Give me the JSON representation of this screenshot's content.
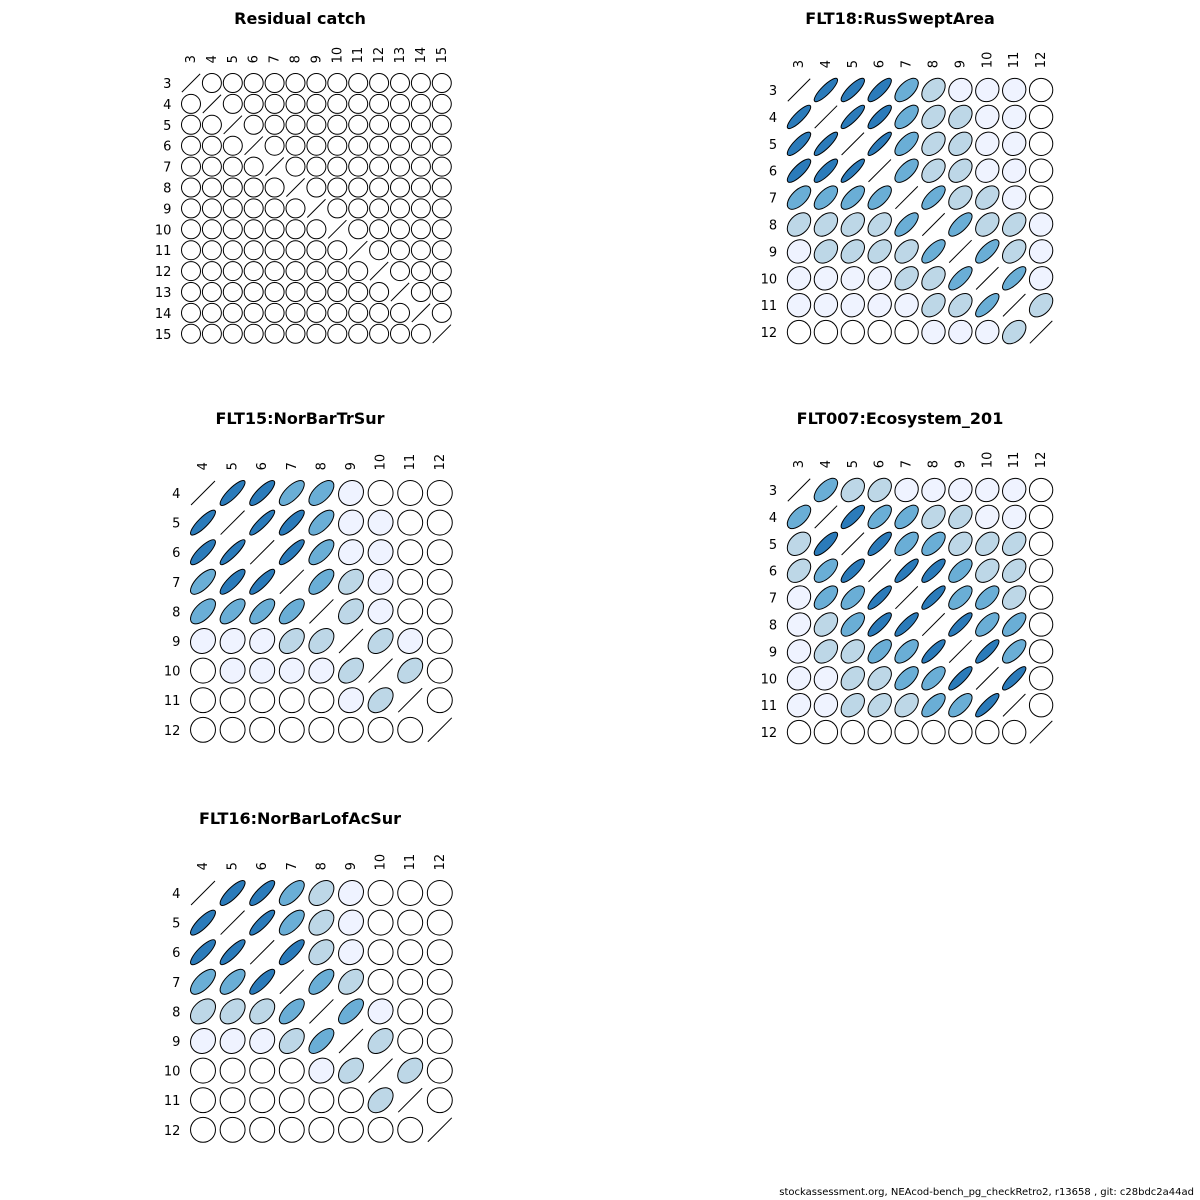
{
  "chart_data": [
    {
      "type": "heatmap",
      "title": "Residual catch",
      "labels": [
        "3",
        "4",
        "5",
        "6",
        "7",
        "8",
        "9",
        "10",
        "11",
        "12",
        "13",
        "14",
        "15"
      ],
      "matrix": [
        [
          1,
          0,
          0,
          0,
          0,
          0,
          0,
          0,
          0,
          0,
          0,
          0,
          0
        ],
        [
          0,
          1,
          0,
          0,
          0,
          0,
          0,
          0,
          0,
          0,
          0,
          0,
          0
        ],
        [
          0,
          0,
          1,
          0,
          0,
          0,
          0,
          0,
          0,
          0,
          0,
          0,
          0
        ],
        [
          0,
          0,
          0,
          1,
          0,
          0,
          0,
          0,
          0,
          0,
          0,
          0,
          0
        ],
        [
          0,
          0,
          0,
          0,
          1,
          0,
          0,
          0,
          0,
          0,
          0,
          0,
          0
        ],
        [
          0,
          0,
          0,
          0,
          0,
          1,
          0,
          0,
          0,
          0,
          0,
          0,
          0
        ],
        [
          0,
          0,
          0,
          0,
          0,
          0,
          1,
          0,
          0,
          0,
          0,
          0,
          0
        ],
        [
          0,
          0,
          0,
          0,
          0,
          0,
          0,
          1,
          0,
          0,
          0,
          0,
          0
        ],
        [
          0,
          0,
          0,
          0,
          0,
          0,
          0,
          0,
          1,
          0,
          0,
          0,
          0
        ],
        [
          0,
          0,
          0,
          0,
          0,
          0,
          0,
          0,
          0,
          1,
          0,
          0,
          0
        ],
        [
          0,
          0,
          0,
          0,
          0,
          0,
          0,
          0,
          0,
          0,
          1,
          0,
          0
        ],
        [
          0,
          0,
          0,
          0,
          0,
          0,
          0,
          0,
          0,
          0,
          0,
          1,
          0
        ],
        [
          0,
          0,
          0,
          0,
          0,
          0,
          0,
          0,
          0,
          0,
          0,
          0,
          1
        ]
      ]
    },
    {
      "type": "heatmap",
      "title": "FLT18:RusSweptArea",
      "labels": [
        "3",
        "4",
        "5",
        "6",
        "7",
        "8",
        "9",
        "10",
        "11",
        "12"
      ],
      "matrix": [
        [
          1.0,
          0.85,
          0.82,
          0.8,
          0.6,
          0.35,
          0.1,
          0.08,
          0.05,
          0.0
        ],
        [
          0.85,
          1.0,
          0.86,
          0.82,
          0.62,
          0.38,
          0.3,
          0.1,
          0.08,
          0.0
        ],
        [
          0.82,
          0.86,
          1.0,
          0.88,
          0.65,
          0.4,
          0.35,
          0.12,
          0.1,
          0.0
        ],
        [
          0.8,
          0.82,
          0.88,
          1.0,
          0.65,
          0.4,
          0.38,
          0.15,
          0.1,
          0.0
        ],
        [
          0.6,
          0.62,
          0.65,
          0.65,
          1.0,
          0.7,
          0.4,
          0.38,
          0.1,
          0.0
        ],
        [
          0.35,
          0.38,
          0.4,
          0.4,
          0.7,
          1.0,
          0.7,
          0.38,
          0.38,
          0.05
        ],
        [
          0.1,
          0.3,
          0.35,
          0.38,
          0.4,
          0.7,
          1.0,
          0.72,
          0.4,
          0.08
        ],
        [
          0.08,
          0.1,
          0.12,
          0.15,
          0.38,
          0.38,
          0.72,
          1.0,
          0.75,
          0.1
        ],
        [
          0.05,
          0.08,
          0.1,
          0.1,
          0.1,
          0.38,
          0.4,
          0.75,
          1.0,
          0.4
        ],
        [
          0.0,
          0.0,
          0.0,
          0.0,
          0.0,
          0.05,
          0.08,
          0.1,
          0.4,
          1.0
        ]
      ]
    },
    {
      "type": "heatmap",
      "title": "FLT15:NorBarTrSur",
      "labels": [
        "4",
        "5",
        "6",
        "7",
        "8",
        "9",
        "10",
        "11",
        "12"
      ],
      "matrix": [
        [
          1.0,
          0.85,
          0.82,
          0.7,
          0.6,
          0.1,
          0.0,
          0.0,
          0.0
        ],
        [
          0.85,
          1.0,
          0.88,
          0.82,
          0.65,
          0.12,
          0.05,
          0.0,
          0.0
        ],
        [
          0.82,
          0.88,
          1.0,
          0.85,
          0.65,
          0.15,
          0.05,
          0.0,
          0.0
        ],
        [
          0.7,
          0.82,
          0.85,
          1.0,
          0.65,
          0.38,
          0.08,
          0.0,
          0.0
        ],
        [
          0.6,
          0.65,
          0.65,
          0.65,
          1.0,
          0.38,
          0.1,
          0.0,
          0.0
        ],
        [
          0.1,
          0.12,
          0.15,
          0.38,
          0.38,
          1.0,
          0.4,
          0.1,
          0.0
        ],
        [
          0.0,
          0.05,
          0.05,
          0.08,
          0.1,
          0.4,
          1.0,
          0.4,
          0.0
        ],
        [
          0.0,
          0.0,
          0.0,
          0.0,
          0.0,
          0.12,
          0.4,
          1.0,
          0.0
        ],
        [
          0.0,
          0.0,
          0.0,
          0.0,
          0.0,
          0.0,
          0.0,
          0.0,
          1.0
        ]
      ]
    },
    {
      "type": "heatmap",
      "title": "FLT007:Ecosystem_201",
      "labels": [
        "3",
        "4",
        "5",
        "6",
        "7",
        "8",
        "9",
        "10",
        "11",
        "12"
      ],
      "matrix": [
        [
          1.0,
          0.6,
          0.35,
          0.35,
          0.1,
          0.1,
          0.1,
          0.1,
          0.1,
          0.0
        ],
        [
          0.6,
          1.0,
          0.8,
          0.62,
          0.6,
          0.38,
          0.35,
          0.12,
          0.1,
          0.0
        ],
        [
          0.35,
          0.8,
          1.0,
          0.82,
          0.62,
          0.6,
          0.35,
          0.35,
          0.38,
          0.0
        ],
        [
          0.35,
          0.62,
          0.82,
          1.0,
          0.85,
          0.82,
          0.62,
          0.38,
          0.38,
          0.0
        ],
        [
          0.1,
          0.6,
          0.62,
          0.85,
          1.0,
          0.85,
          0.62,
          0.62,
          0.38,
          0.0
        ],
        [
          0.1,
          0.38,
          0.6,
          0.82,
          0.85,
          1.0,
          0.85,
          0.65,
          0.65,
          0.0
        ],
        [
          0.1,
          0.35,
          0.35,
          0.62,
          0.62,
          0.85,
          1.0,
          0.85,
          0.65,
          0.0
        ],
        [
          0.1,
          0.12,
          0.35,
          0.38,
          0.62,
          0.65,
          0.85,
          1.0,
          0.85,
          0.0
        ],
        [
          0.1,
          0.1,
          0.38,
          0.38,
          0.38,
          0.65,
          0.65,
          0.85,
          1.0,
          0.0
        ],
        [
          0.0,
          0.0,
          0.0,
          0.0,
          0.0,
          0.0,
          0.0,
          0.0,
          0.0,
          1.0
        ]
      ]
    },
    {
      "type": "heatmap",
      "title": "FLT16:NorBarLofAcSur",
      "labels": [
        "4",
        "5",
        "6",
        "7",
        "8",
        "9",
        "10",
        "11",
        "12"
      ],
      "matrix": [
        [
          1.0,
          0.82,
          0.82,
          0.65,
          0.38,
          0.1,
          0.0,
          0.0,
          0.0
        ],
        [
          0.82,
          1.0,
          0.85,
          0.65,
          0.38,
          0.12,
          0.0,
          0.0,
          0.0
        ],
        [
          0.82,
          0.85,
          1.0,
          0.82,
          0.38,
          0.12,
          0.0,
          0.0,
          0.0
        ],
        [
          0.65,
          0.65,
          0.82,
          1.0,
          0.65,
          0.38,
          0.0,
          0.0,
          0.0
        ],
        [
          0.38,
          0.38,
          0.38,
          0.65,
          1.0,
          0.65,
          0.1,
          0.0,
          0.0
        ],
        [
          0.1,
          0.1,
          0.12,
          0.38,
          0.65,
          1.0,
          0.38,
          0.0,
          0.0
        ],
        [
          0.0,
          0.0,
          0.0,
          0.0,
          0.1,
          0.38,
          1.0,
          0.38,
          0.0
        ],
        [
          0.0,
          0.0,
          0.0,
          0.0,
          0.0,
          0.0,
          0.38,
          1.0,
          0.0
        ],
        [
          0.0,
          0.0,
          0.0,
          0.0,
          0.0,
          0.0,
          0.0,
          0.0,
          1.0
        ]
      ]
    }
  ],
  "footer": "stockassessment.org, NEAcod-bench_pg_checkRetro2, r13658 , git: c28bdc2a44ad",
  "colors": {
    "strong": "#2b7bba",
    "medium": "#6aaed6",
    "light": "#bdd7e7",
    "faint": "#eff3ff",
    "zero": "#ffffff"
  }
}
